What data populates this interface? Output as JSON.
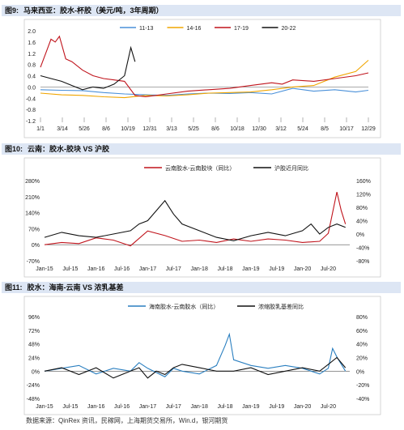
{
  "figures": [
    {
      "number": "图9:",
      "title": "马来西亚：胶水-杯胶（美元/吨，3年周期）"
    },
    {
      "number": "图10:",
      "title": "云南：胶水-胶块 VS 沪胶"
    },
    {
      "number": "图11:",
      "title": "胶水：海南-云南 VS 浓乳基差"
    }
  ],
  "source": "数据来源：QinRex 资讯，民稼网，上海期货交易所，Win.d，银河期货",
  "colors": {
    "c1": "#4a90d9",
    "c2": "#f0a500",
    "c3": "#c0141c",
    "c4": "#111111",
    "blue": "#2a7fc0",
    "title_bg": "#dde6f4"
  },
  "chart_data": [
    {
      "type": "line",
      "ylim": [
        -1.2,
        2.0
      ],
      "yticks": [
        "2.0",
        "1.6",
        "1.2",
        "0.8",
        "0.4",
        "0.0",
        "-0.4",
        "-0.8",
        "-1.2"
      ],
      "ytick_values": [
        2.0,
        1.6,
        1.2,
        0.8,
        0.4,
        0.0,
        -0.4,
        -0.8,
        -1.2
      ],
      "xticks": [
        "1/1",
        "3/14",
        "5/26",
        "8/6",
        "10/19",
        "12/31",
        "3/13",
        "5/25",
        "8/6",
        "10/18",
        "12/30",
        "3/12",
        "5/24",
        "8/5",
        "10/17",
        "12/29"
      ],
      "x_count": 157,
      "legend": [
        "11-13",
        "14-16",
        "17-19",
        "20-22"
      ],
      "series": [
        {
          "name": "11-13",
          "color": "#4a90d9",
          "xs": [
            0,
            10,
            20,
            30,
            40,
            50,
            60,
            70,
            80,
            90,
            100,
            110,
            120,
            130,
            140,
            150,
            156
          ],
          "values": [
            -0.1,
            -0.12,
            -0.13,
            -0.2,
            -0.25,
            -0.28,
            -0.3,
            -0.25,
            -0.22,
            -0.23,
            -0.2,
            -0.25,
            -0.05,
            -0.15,
            -0.1,
            -0.18,
            -0.12
          ]
        },
        {
          "name": "14-16",
          "color": "#f0a500",
          "xs": [
            0,
            10,
            20,
            30,
            40,
            50,
            60,
            70,
            80,
            90,
            100,
            110,
            120,
            130,
            140,
            150,
            156
          ],
          "values": [
            -0.22,
            -0.28,
            -0.3,
            -0.35,
            -0.38,
            -0.3,
            -0.32,
            -0.28,
            -0.22,
            -0.2,
            -0.18,
            -0.1,
            0.0,
            0.05,
            0.35,
            0.55,
            0.95
          ]
        },
        {
          "name": "17-19",
          "color": "#c0141c",
          "xs": [
            0,
            3,
            5,
            7,
            9,
            12,
            15,
            20,
            25,
            30,
            35,
            40,
            45,
            50,
            55,
            60,
            70,
            80,
            90,
            100,
            110,
            115,
            120,
            130,
            140,
            150,
            156
          ],
          "values": [
            0.7,
            1.3,
            1.7,
            1.6,
            1.8,
            1.0,
            0.9,
            0.6,
            0.4,
            0.3,
            0.25,
            0.2,
            -0.3,
            -0.35,
            -0.3,
            -0.25,
            -0.15,
            -0.1,
            -0.05,
            0.05,
            0.15,
            0.1,
            0.25,
            0.2,
            0.3,
            0.4,
            0.5
          ]
        },
        {
          "name": "20-22",
          "color": "#111111",
          "xs": [
            0,
            5,
            10,
            15,
            20,
            25,
            30,
            35,
            40,
            43,
            45
          ],
          "values": [
            0.4,
            0.3,
            0.2,
            0.05,
            -0.1,
            0.0,
            -0.05,
            0.1,
            0.4,
            1.4,
            0.9
          ]
        }
      ]
    },
    {
      "type": "line",
      "ylim_left": [
        -70,
        280
      ],
      "ylim_right": [
        -80,
        160
      ],
      "yticks_left": [
        "280%",
        "210%",
        "140%",
        "70%",
        "0%",
        "-70%"
      ],
      "yticks_left_values": [
        280,
        210,
        140,
        70,
        0,
        -70
      ],
      "yticks_right": [
        "160%",
        "120%",
        "80%",
        "40%",
        "0%",
        "-40%",
        "-80%"
      ],
      "yticks_right_values": [
        160,
        120,
        80,
        40,
        0,
        -40,
        -80
      ],
      "xticks": [
        "Jan-15",
        "Jul-15",
        "Jan-16",
        "Jul-16",
        "Jan-17",
        "Jul-17",
        "Jan-18",
        "Jul-18",
        "Jan-19",
        "Jul-19",
        "Jan-20",
        "Jul-20"
      ],
      "x_count": 72,
      "legend": [
        "云南胶水-云南胶块（同比）",
        "沪胶近月同比"
      ],
      "series": [
        {
          "name": "云南胶水-云南胶块（同比）",
          "axis": "left",
          "color": "#c0141c",
          "xs": [
            0,
            4,
            8,
            12,
            16,
            20,
            24,
            28,
            32,
            36,
            40,
            44,
            48,
            52,
            56,
            60,
            64,
            66,
            68,
            69,
            70
          ],
          "values": [
            0,
            10,
            5,
            30,
            20,
            -5,
            60,
            40,
            15,
            20,
            10,
            25,
            15,
            25,
            20,
            10,
            15,
            50,
            230,
            150,
            90
          ]
        },
        {
          "name": "沪胶近月同比",
          "axis": "right",
          "color": "#111111",
          "xs": [
            0,
            4,
            8,
            12,
            16,
            20,
            22,
            24,
            26,
            28,
            30,
            32,
            36,
            40,
            44,
            48,
            52,
            56,
            60,
            62,
            64,
            66,
            68,
            70
          ],
          "values": [
            -10,
            5,
            -5,
            -10,
            0,
            10,
            30,
            40,
            70,
            100,
            60,
            30,
            10,
            -10,
            -20,
            -5,
            5,
            -5,
            10,
            30,
            0,
            20,
            30,
            20
          ]
        }
      ]
    },
    {
      "type": "line",
      "ylim_left": [
        -48,
        96
      ],
      "ylim_right": [
        -40,
        80
      ],
      "yticks_left": [
        "96%",
        "72%",
        "48%",
        "24%",
        "0%",
        "-24%",
        "-48%"
      ],
      "yticks_left_values": [
        96,
        72,
        48,
        24,
        0,
        -24,
        -48
      ],
      "yticks_right": [
        "80%",
        "60%",
        "40%",
        "20%",
        "0%",
        "-20%",
        "-40%"
      ],
      "yticks_right_values": [
        80,
        60,
        40,
        20,
        0,
        -20,
        -40
      ],
      "xticks": [
        "Jan-15",
        "Jul-15",
        "Jan-16",
        "Jul-16",
        "Jan-17",
        "Jul-17",
        "Jan-18",
        "Jul-18",
        "Jan-19",
        "Jul-19",
        "Jan-20",
        "Jul-20"
      ],
      "x_count": 72,
      "legend": [
        "海南胶水-云南胶水（同比）",
        "浓缩胶乳基差同比"
      ],
      "series": [
        {
          "name": "海南胶水-云南胶水（同比）",
          "axis": "left",
          "color": "#2a7fc0",
          "xs": [
            0,
            4,
            8,
            12,
            16,
            20,
            22,
            24,
            28,
            30,
            32,
            36,
            40,
            42,
            43,
            44,
            48,
            52,
            56,
            60,
            64,
            66,
            67,
            68,
            70
          ],
          "values": [
            0,
            5,
            10,
            -5,
            5,
            0,
            15,
            5,
            -10,
            5,
            0,
            -5,
            10,
            45,
            65,
            20,
            10,
            5,
            10,
            5,
            -5,
            5,
            40,
            25,
            0
          ]
        },
        {
          "name": "浓缩胶乳基差同比",
          "axis": "right",
          "color": "#111111",
          "xs": [
            0,
            4,
            8,
            12,
            16,
            20,
            22,
            24,
            26,
            28,
            30,
            32,
            36,
            40,
            44,
            48,
            52,
            56,
            60,
            64,
            66,
            68,
            70
          ],
          "values": [
            0,
            5,
            -5,
            5,
            -10,
            0,
            5,
            -10,
            0,
            -5,
            5,
            10,
            5,
            0,
            0,
            5,
            -5,
            0,
            5,
            0,
            10,
            20,
            5
          ]
        }
      ]
    }
  ]
}
